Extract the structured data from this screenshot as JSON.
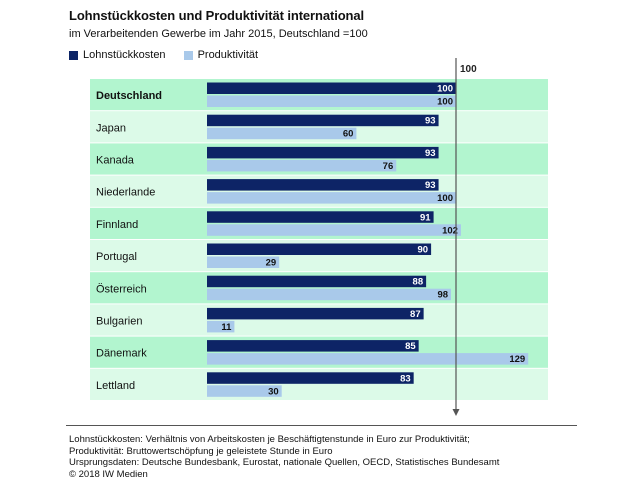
{
  "title": "Lohnstückkosten und Produktivität international",
  "subtitle": "im Verarbeitenden Gewerbe im Jahr 2015, Deutschland =100",
  "legend": [
    {
      "name": "Lohnstückkosten",
      "color": "#0d2466"
    },
    {
      "name": "Produktivität",
      "color": "#a9c9ea"
    }
  ],
  "reference_label": "100",
  "colors": {
    "band_dark": "#b2f5cf",
    "band_light": "#dcfae8",
    "ref_line": "#555555"
  },
  "chart_data": {
    "type": "bar",
    "orientation": "horizontal",
    "categories": [
      "Deutschland",
      "Japan",
      "Kanada",
      "Niederlande",
      "Finnland",
      "Portugal",
      "Österreich",
      "Bulgarien",
      "Dänemark",
      "Lettland"
    ],
    "series": [
      {
        "name": "Lohnstückkosten",
        "values": [
          100,
          93,
          93,
          93,
          91,
          90,
          88,
          87,
          85,
          83
        ]
      },
      {
        "name": "Produktivität",
        "values": [
          100,
          60,
          76,
          100,
          102,
          29,
          98,
          11,
          129,
          30
        ]
      }
    ],
    "reference_value": 100,
    "xlim": [
      0,
      130
    ]
  },
  "footer": [
    "Lohnstückkosten: Verhältnis von Arbeitskosten je Beschäftigtenstunde in Euro zur Produktivität;",
    "Produktivität: Bruttowertschöpfung je geleistete Stunde in Euro",
    "Ursprungsdaten: Deutsche Bundesbank, Eurostat, nationale Quellen, OECD, Statistisches Bundesamt",
    "© 2018 IW Medien"
  ]
}
